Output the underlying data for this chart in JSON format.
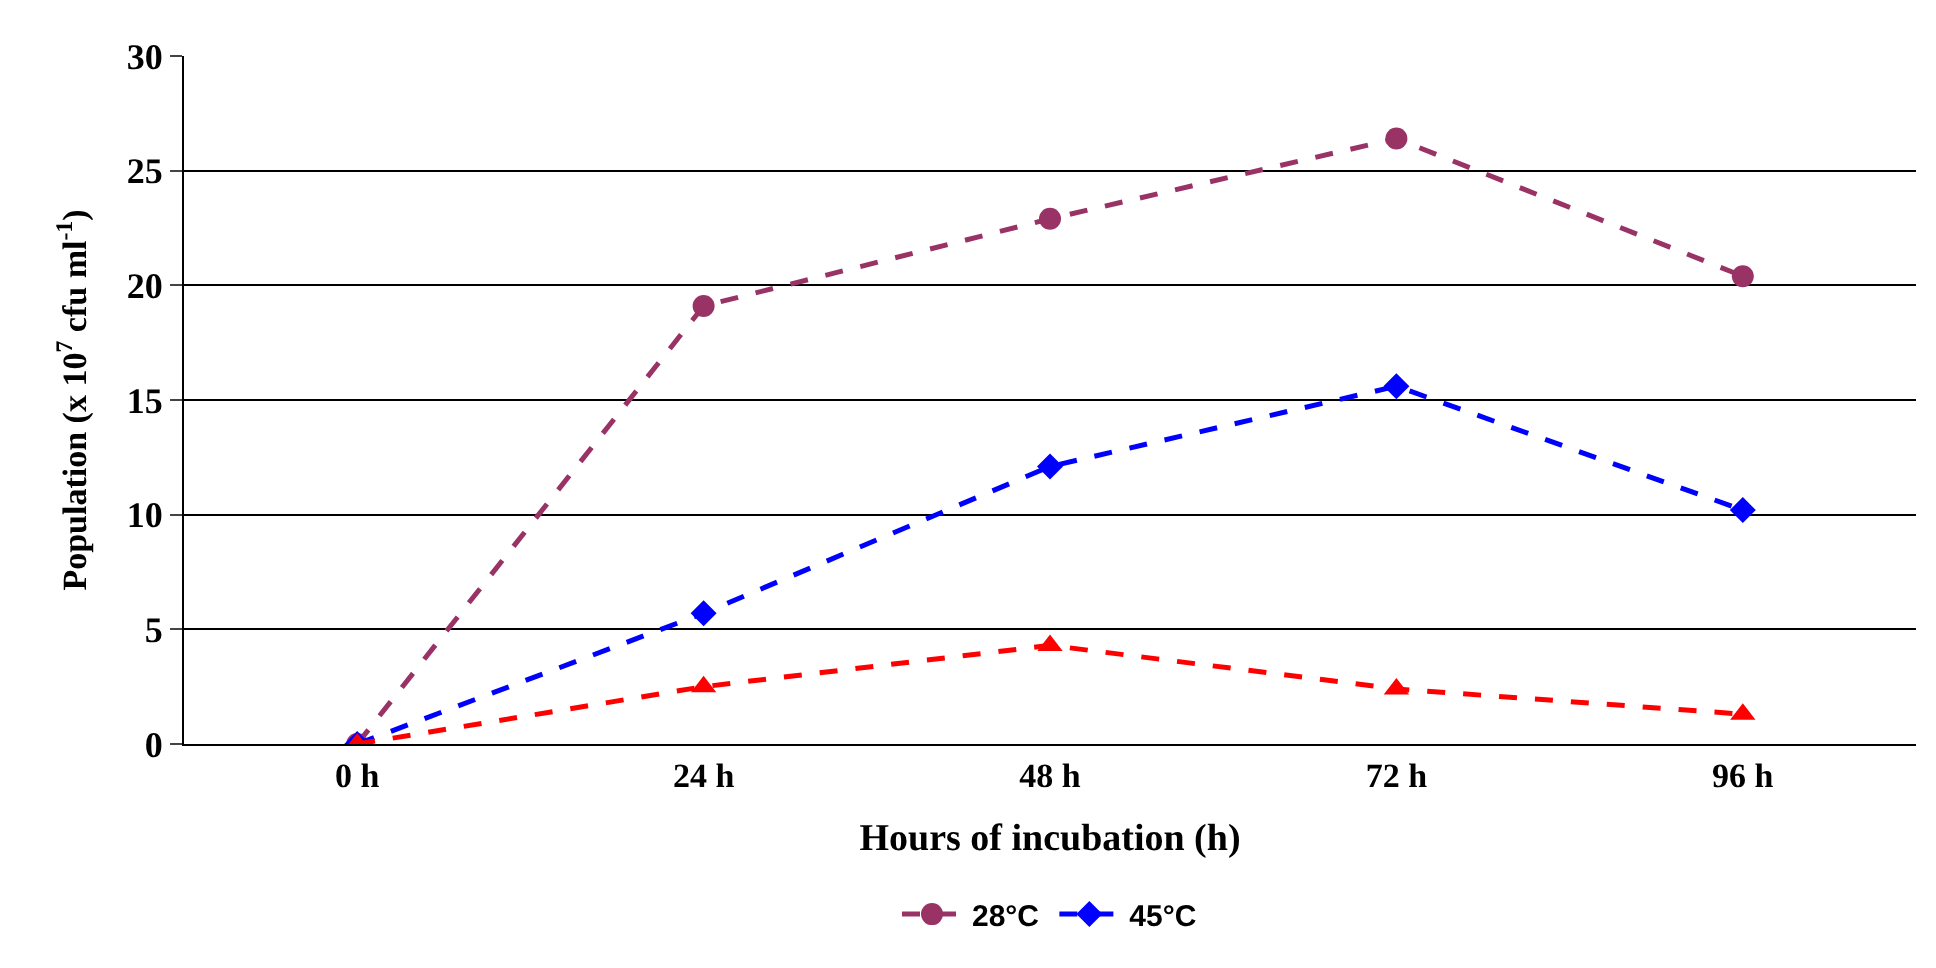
{
  "chart_data": {
    "type": "line",
    "xlabel": "Hours of incubation (h)",
    "ylabel": "Population (x 10$^{7}$ cfu ml$^{-1}$)",
    "categories": [
      "0 h",
      "24 h",
      "48 h",
      "72 h",
      "96 h"
    ],
    "series": [
      {
        "name": "28°C",
        "color": "#993366",
        "marker": "circle",
        "values": [
          0,
          19.1,
          22.9,
          26.4,
          20.4
        ]
      },
      {
        "name": "45°C",
        "color": "#0000ff",
        "marker": "diamond",
        "values": [
          0,
          5.7,
          12.1,
          15.6,
          10.2
        ]
      },
      {
        "color": "#ff0000",
        "marker": "triangle",
        "values": [
          0,
          2.5,
          4.3,
          2.4,
          1.3
        ]
      }
    ],
    "ylim": [
      0,
      30
    ],
    "yticks": [
      0,
      5,
      10,
      15,
      20,
      25,
      30
    ],
    "grid": "y",
    "legend": "bottom",
    "line_style": "dashed"
  }
}
